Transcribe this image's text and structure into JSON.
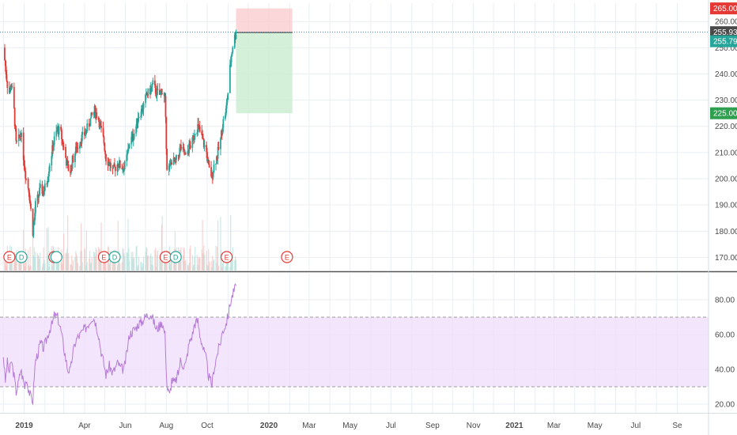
{
  "chart_data": [
    {
      "type": "candlestick",
      "panel": "price",
      "xlabel": "",
      "ylabel": "",
      "ylim": [
        165,
        267
      ],
      "grid": true,
      "y_ticks": [
        "170.00",
        "180.00",
        "190.00",
        "200.00",
        "210.00",
        "220.00",
        "230.00",
        "240.00",
        "250.00",
        "260.00"
      ],
      "price_labels": [
        {
          "value": 265.0,
          "text": "265.00",
          "color": "#e53935"
        },
        {
          "value": 255.93,
          "text": "255.93",
          "color": "#4a4a4a"
        },
        {
          "value": 255.79,
          "text": "255.79",
          "color": "#26a69a"
        },
        {
          "value": 225.0,
          "text": "225.00",
          "color": "#2e9e4f"
        }
      ],
      "x_months": [
        "2018-12-01",
        "2019-01-01",
        "2019-02-01",
        "2019-03-01",
        "2019-04-01",
        "2019-05-01",
        "2019-06-01",
        "2019-07-01",
        "2019-08-01",
        "2019-09-01",
        "2019-10-01",
        "2019-11-01",
        "2019-12-01",
        "2020-01-01",
        "2020-02-01",
        "2020-03-01",
        "2020-04-01",
        "2020-05-01",
        "2020-06-01",
        "2020-07-01",
        "2020-08-01",
        "2020-09-01",
        "2020-10-01",
        "2020-11-01",
        "2020-12-01",
        "2021-01-01",
        "2021-02-01",
        "2021-03-01",
        "2021-04-01",
        "2021-05-01",
        "2021-06-01",
        "2021-07-01",
        "2021-08-01",
        "2021-09-01"
      ],
      "close_series": [
        {
          "date": "2018-12-01",
          "value": 250
        },
        {
          "date": "2018-12-04",
          "value": 243
        },
        {
          "date": "2018-12-07",
          "value": 236
        },
        {
          "date": "2018-12-10",
          "value": 233
        },
        {
          "date": "2018-12-13",
          "value": 236
        },
        {
          "date": "2018-12-17",
          "value": 226
        },
        {
          "date": "2018-12-20",
          "value": 213
        },
        {
          "date": "2018-12-24",
          "value": 215
        },
        {
          "date": "2018-12-27",
          "value": 218
        },
        {
          "date": "2019-01-02",
          "value": 204
        },
        {
          "date": "2019-01-04",
          "value": 200
        },
        {
          "date": "2019-01-08",
          "value": 196
        },
        {
          "date": "2019-01-11",
          "value": 188
        },
        {
          "date": "2019-01-14",
          "value": 180
        },
        {
          "date": "2019-01-16",
          "value": 184
        },
        {
          "date": "2019-01-18",
          "value": 190
        },
        {
          "date": "2019-01-22",
          "value": 193
        },
        {
          "date": "2019-01-25",
          "value": 196
        },
        {
          "date": "2019-01-30",
          "value": 195
        },
        {
          "date": "2019-02-04",
          "value": 199
        },
        {
          "date": "2019-02-08",
          "value": 206
        },
        {
          "date": "2019-02-12",
          "value": 211
        },
        {
          "date": "2019-02-15",
          "value": 215
        },
        {
          "date": "2019-02-20",
          "value": 219
        },
        {
          "date": "2019-02-25",
          "value": 217
        },
        {
          "date": "2019-02-28",
          "value": 213
        },
        {
          "date": "2019-03-04",
          "value": 208
        },
        {
          "date": "2019-03-07",
          "value": 204
        },
        {
          "date": "2019-03-11",
          "value": 203
        },
        {
          "date": "2019-03-14",
          "value": 207
        },
        {
          "date": "2019-03-18",
          "value": 210
        },
        {
          "date": "2019-03-21",
          "value": 212
        },
        {
          "date": "2019-03-26",
          "value": 215
        },
        {
          "date": "2019-03-29",
          "value": 216
        },
        {
          "date": "2019-04-03",
          "value": 218
        },
        {
          "date": "2019-04-08",
          "value": 221
        },
        {
          "date": "2019-04-12",
          "value": 224
        },
        {
          "date": "2019-04-16",
          "value": 226
        },
        {
          "date": "2019-04-22",
          "value": 223
        },
        {
          "date": "2019-04-25",
          "value": 219
        },
        {
          "date": "2019-04-30",
          "value": 214
        },
        {
          "date": "2019-05-03",
          "value": 208
        },
        {
          "date": "2019-05-08",
          "value": 206
        },
        {
          "date": "2019-05-13",
          "value": 203
        },
        {
          "date": "2019-05-16",
          "value": 204
        },
        {
          "date": "2019-05-21",
          "value": 206
        },
        {
          "date": "2019-05-24",
          "value": 205
        },
        {
          "date": "2019-05-30",
          "value": 204
        },
        {
          "date": "2019-06-04",
          "value": 209
        },
        {
          "date": "2019-06-07",
          "value": 214
        },
        {
          "date": "2019-06-12",
          "value": 216
        },
        {
          "date": "2019-06-17",
          "value": 220
        },
        {
          "date": "2019-06-20",
          "value": 224
        },
        {
          "date": "2019-06-25",
          "value": 226
        },
        {
          "date": "2019-06-28",
          "value": 228
        },
        {
          "date": "2019-07-03",
          "value": 232
        },
        {
          "date": "2019-07-09",
          "value": 234
        },
        {
          "date": "2019-07-12",
          "value": 236
        },
        {
          "date": "2019-07-17",
          "value": 233
        },
        {
          "date": "2019-07-22",
          "value": 232
        },
        {
          "date": "2019-07-25",
          "value": 234
        },
        {
          "date": "2019-07-30",
          "value": 230
        },
        {
          "date": "2019-08-02",
          "value": 205
        },
        {
          "date": "2019-08-06",
          "value": 204
        },
        {
          "date": "2019-08-09",
          "value": 207
        },
        {
          "date": "2019-08-14",
          "value": 206
        },
        {
          "date": "2019-08-19",
          "value": 209
        },
        {
          "date": "2019-08-22",
          "value": 212
        },
        {
          "date": "2019-08-27",
          "value": 210
        },
        {
          "date": "2019-08-30",
          "value": 208
        },
        {
          "date": "2019-09-04",
          "value": 212
        },
        {
          "date": "2019-09-09",
          "value": 214
        },
        {
          "date": "2019-09-12",
          "value": 218
        },
        {
          "date": "2019-09-17",
          "value": 220
        },
        {
          "date": "2019-09-20",
          "value": 218
        },
        {
          "date": "2019-09-25",
          "value": 214
        },
        {
          "date": "2019-09-30",
          "value": 210
        },
        {
          "date": "2019-10-03",
          "value": 204
        },
        {
          "date": "2019-10-08",
          "value": 201
        },
        {
          "date": "2019-10-11",
          "value": 205
        },
        {
          "date": "2019-10-16",
          "value": 209
        },
        {
          "date": "2019-10-21",
          "value": 215
        },
        {
          "date": "2019-10-24",
          "value": 221
        },
        {
          "date": "2019-10-29",
          "value": 226
        },
        {
          "date": "2019-11-01",
          "value": 233
        },
        {
          "date": "2019-11-05",
          "value": 245
        },
        {
          "date": "2019-11-08",
          "value": 251
        },
        {
          "date": "2019-11-11",
          "value": 254
        },
        {
          "date": "2019-11-13",
          "value": 255.93
        }
      ],
      "volume_note": "volume histogram shown along bottom of price pane",
      "rsi_note": "see panel 2",
      "position_tool": {
        "entry": 255.79,
        "stop": 265.0,
        "target": 225.0,
        "start_date": "2019-11-13",
        "end_date": "2020-02-05"
      },
      "event_markers": [
        {
          "date": "2018-12-10",
          "label": "E",
          "color": "#e53935"
        },
        {
          "date": "2018-12-28",
          "label": "D",
          "color": "#26a69a"
        },
        {
          "date": "2019-02-15",
          "label": "E",
          "color": "#e53935"
        },
        {
          "date": "2019-02-18",
          "label": "",
          "color": "#26a69a"
        },
        {
          "date": "2019-04-30",
          "label": "E",
          "color": "#e53935"
        },
        {
          "date": "2019-05-16",
          "label": "D",
          "color": "#26a69a"
        },
        {
          "date": "2019-07-31",
          "label": "E",
          "color": "#e53935"
        },
        {
          "date": "2019-08-15",
          "label": "D",
          "color": "#26a69a"
        },
        {
          "date": "2019-10-30",
          "label": "E",
          "color": "#e53935"
        },
        {
          "date": "2020-01-28",
          "label": "E",
          "color": "#e53935"
        }
      ]
    },
    {
      "type": "line",
      "panel": "rsi",
      "ylim": [
        15,
        95
      ],
      "y_ticks": [
        "20.00",
        "40.00",
        "60.00",
        "80.00"
      ],
      "bands": {
        "upper": 70,
        "lower": 30
      },
      "color": "#b57bd6",
      "band_fill": "#efdcfb",
      "values": [
        {
          "date": "2018-12-01",
          "value": 48
        },
        {
          "date": "2018-12-04",
          "value": 33
        },
        {
          "date": "2018-12-07",
          "value": 44
        },
        {
          "date": "2018-12-10",
          "value": 38
        },
        {
          "date": "2018-12-13",
          "value": 45
        },
        {
          "date": "2018-12-17",
          "value": 36
        },
        {
          "date": "2018-12-20",
          "value": 27
        },
        {
          "date": "2018-12-24",
          "value": 33
        },
        {
          "date": "2018-12-27",
          "value": 40
        },
        {
          "date": "2019-01-02",
          "value": 30
        },
        {
          "date": "2019-01-04",
          "value": 35
        },
        {
          "date": "2019-01-08",
          "value": 28
        },
        {
          "date": "2019-01-11",
          "value": 24
        },
        {
          "date": "2019-01-14",
          "value": 22
        },
        {
          "date": "2019-01-16",
          "value": 36
        },
        {
          "date": "2019-01-18",
          "value": 45
        },
        {
          "date": "2019-01-22",
          "value": 50
        },
        {
          "date": "2019-01-25",
          "value": 55
        },
        {
          "date": "2019-01-30",
          "value": 52
        },
        {
          "date": "2019-02-04",
          "value": 58
        },
        {
          "date": "2019-02-08",
          "value": 63
        },
        {
          "date": "2019-02-12",
          "value": 66
        },
        {
          "date": "2019-02-15",
          "value": 71
        },
        {
          "date": "2019-02-20",
          "value": 70
        },
        {
          "date": "2019-02-25",
          "value": 62
        },
        {
          "date": "2019-02-28",
          "value": 55
        },
        {
          "date": "2019-03-04",
          "value": 46
        },
        {
          "date": "2019-03-07",
          "value": 40
        },
        {
          "date": "2019-03-11",
          "value": 39
        },
        {
          "date": "2019-03-14",
          "value": 48
        },
        {
          "date": "2019-03-18",
          "value": 55
        },
        {
          "date": "2019-03-21",
          "value": 58
        },
        {
          "date": "2019-03-26",
          "value": 60
        },
        {
          "date": "2019-03-29",
          "value": 62
        },
        {
          "date": "2019-04-03",
          "value": 64
        },
        {
          "date": "2019-04-08",
          "value": 67
        },
        {
          "date": "2019-04-12",
          "value": 70
        },
        {
          "date": "2019-04-16",
          "value": 69
        },
        {
          "date": "2019-04-22",
          "value": 60
        },
        {
          "date": "2019-04-25",
          "value": 52
        },
        {
          "date": "2019-04-30",
          "value": 43
        },
        {
          "date": "2019-05-03",
          "value": 37
        },
        {
          "date": "2019-05-08",
          "value": 42
        },
        {
          "date": "2019-05-13",
          "value": 38
        },
        {
          "date": "2019-05-16",
          "value": 40
        },
        {
          "date": "2019-05-21",
          "value": 44
        },
        {
          "date": "2019-05-24",
          "value": 41
        },
        {
          "date": "2019-05-30",
          "value": 40
        },
        {
          "date": "2019-06-04",
          "value": 52
        },
        {
          "date": "2019-06-07",
          "value": 60
        },
        {
          "date": "2019-06-12",
          "value": 62
        },
        {
          "date": "2019-06-17",
          "value": 64
        },
        {
          "date": "2019-06-20",
          "value": 66
        },
        {
          "date": "2019-06-25",
          "value": 67
        },
        {
          "date": "2019-06-28",
          "value": 69
        },
        {
          "date": "2019-07-03",
          "value": 71
        },
        {
          "date": "2019-07-09",
          "value": 72
        },
        {
          "date": "2019-07-12",
          "value": 69
        },
        {
          "date": "2019-07-17",
          "value": 63
        },
        {
          "date": "2019-07-22",
          "value": 65
        },
        {
          "date": "2019-07-25",
          "value": 68
        },
        {
          "date": "2019-07-30",
          "value": 60
        },
        {
          "date": "2019-08-02",
          "value": 30
        },
        {
          "date": "2019-08-06",
          "value": 25
        },
        {
          "date": "2019-08-09",
          "value": 34
        },
        {
          "date": "2019-08-14",
          "value": 32
        },
        {
          "date": "2019-08-19",
          "value": 38
        },
        {
          "date": "2019-08-22",
          "value": 45
        },
        {
          "date": "2019-08-27",
          "value": 42
        },
        {
          "date": "2019-08-30",
          "value": 43
        },
        {
          "date": "2019-09-04",
          "value": 55
        },
        {
          "date": "2019-09-09",
          "value": 60
        },
        {
          "date": "2019-09-12",
          "value": 66
        },
        {
          "date": "2019-09-17",
          "value": 68
        },
        {
          "date": "2019-09-20",
          "value": 60
        },
        {
          "date": "2019-09-25",
          "value": 52
        },
        {
          "date": "2019-09-30",
          "value": 45
        },
        {
          "date": "2019-10-03",
          "value": 36
        },
        {
          "date": "2019-10-08",
          "value": 31
        },
        {
          "date": "2019-10-11",
          "value": 40
        },
        {
          "date": "2019-10-16",
          "value": 49
        },
        {
          "date": "2019-10-21",
          "value": 56
        },
        {
          "date": "2019-10-24",
          "value": 62
        },
        {
          "date": "2019-10-29",
          "value": 66
        },
        {
          "date": "2019-11-01",
          "value": 71
        },
        {
          "date": "2019-11-05",
          "value": 79
        },
        {
          "date": "2019-11-08",
          "value": 83
        },
        {
          "date": "2019-11-11",
          "value": 86
        },
        {
          "date": "2019-11-13",
          "value": 88
        }
      ]
    }
  ],
  "x_axis": {
    "labels": [
      {
        "date": "2019-01-01",
        "text": "2019",
        "bold": true
      },
      {
        "date": "2019-04-01",
        "text": "Apr",
        "bold": false
      },
      {
        "date": "2019-06-01",
        "text": "Jun",
        "bold": false
      },
      {
        "date": "2019-08-01",
        "text": "Aug",
        "bold": false
      },
      {
        "date": "2019-10-01",
        "text": "Oct",
        "bold": false
      },
      {
        "date": "2020-01-01",
        "text": "2020",
        "bold": true
      },
      {
        "date": "2020-03-01",
        "text": "Mar",
        "bold": false
      },
      {
        "date": "2020-05-01",
        "text": "May",
        "bold": false
      },
      {
        "date": "2020-07-01",
        "text": "Jul",
        "bold": false
      },
      {
        "date": "2020-09-01",
        "text": "Sep",
        "bold": false
      },
      {
        "date": "2020-11-01",
        "text": "Nov",
        "bold": false
      },
      {
        "date": "2021-01-01",
        "text": "2021",
        "bold": true
      },
      {
        "date": "2021-03-01",
        "text": "Mar",
        "bold": false
      },
      {
        "date": "2021-05-01",
        "text": "May",
        "bold": false
      },
      {
        "date": "2021-07-01",
        "text": "Jul",
        "bold": false
      },
      {
        "date": "2021-09-01",
        "text": "Se",
        "bold": false
      }
    ]
  },
  "colors": {
    "up": "#26a69a",
    "down": "#e53935",
    "grid": "#e9eef3",
    "axis_text": "#4a4a4a",
    "loss_zone": "#f9c9cc",
    "profit_zone": "#c9ecd0",
    "current_price_line": "#3f7ea6"
  }
}
